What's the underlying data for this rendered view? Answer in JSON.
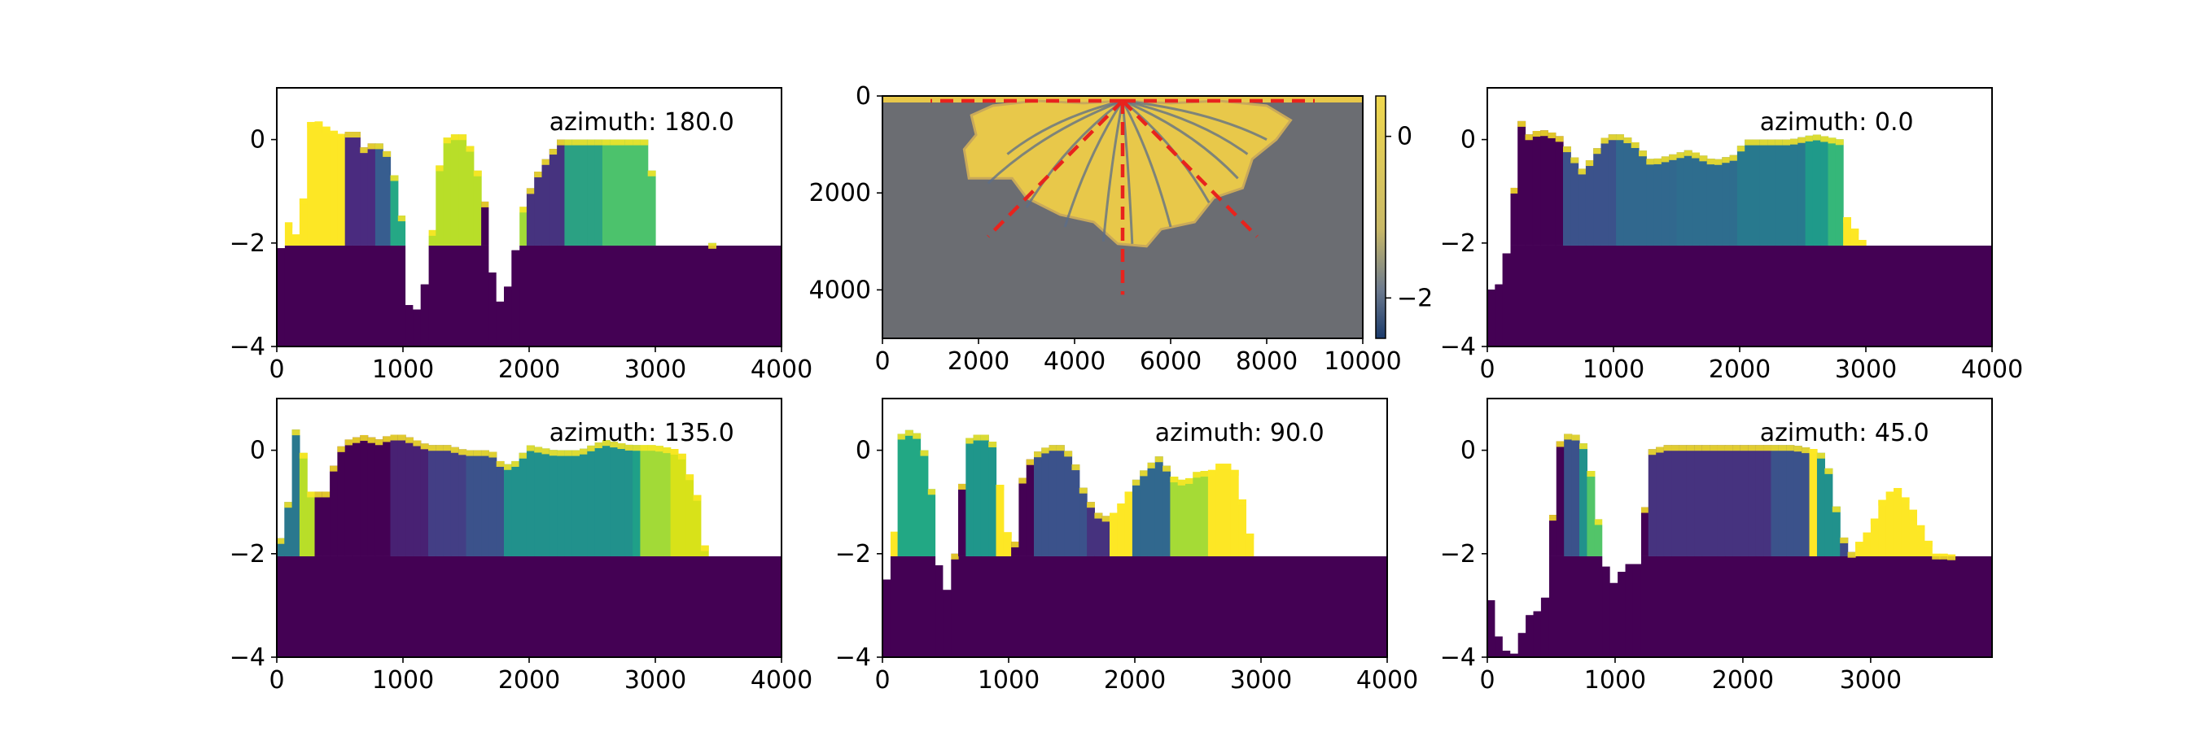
{
  "chart_data": [
    {
      "id": "sec-180",
      "type": "heatmap",
      "annotation": "azimuth: 180.0",
      "xlim": [
        0,
        4000
      ],
      "ylim": [
        -4,
        1
      ],
      "xticks": [
        {
          "v": 0,
          "label": "0"
        },
        {
          "v": 1000,
          "label": "1000"
        },
        {
          "v": 2000,
          "label": "2000"
        },
        {
          "v": 3000,
          "label": "3000"
        },
        {
          "v": 4000,
          "label": "4000"
        }
      ],
      "yticks": [
        {
          "v": 0,
          "label": "0"
        },
        {
          "v": -2,
          "label": "−2"
        },
        {
          "v": -4,
          "label": "−4"
        }
      ],
      "x_step": 60,
      "base_level": -2.05,
      "profile": [
        [
          0,
          -2
        ],
        [
          60,
          -2.2
        ],
        [
          100,
          -1.4
        ],
        [
          140,
          -1.9
        ],
        [
          200,
          -1.5
        ],
        [
          250,
          0.3
        ],
        [
          300,
          0.4
        ],
        [
          420,
          0.2
        ],
        [
          520,
          0.1
        ],
        [
          620,
          0.2
        ],
        [
          700,
          -0.2
        ],
        [
          780,
          0
        ],
        [
          900,
          -0.3
        ],
        [
          1000,
          -1.6
        ],
        [
          1050,
          -3.2
        ],
        [
          1120,
          -3.3
        ],
        [
          1200,
          -2.5
        ],
        [
          1260,
          -1.0
        ],
        [
          1320,
          0
        ],
        [
          1400,
          0.1
        ],
        [
          1500,
          0.1
        ],
        [
          1580,
          -0.5
        ],
        [
          1650,
          -1.2
        ],
        [
          1720,
          -2.8
        ],
        [
          1780,
          -3.2
        ],
        [
          1850,
          -2.7
        ],
        [
          1950,
          -1.3
        ],
        [
          2050,
          -0.7
        ],
        [
          2150,
          -0.3
        ],
        [
          2250,
          0
        ],
        [
          2350,
          0
        ],
        [
          2450,
          0
        ],
        [
          2550,
          0
        ],
        [
          2700,
          0
        ],
        [
          2850,
          0
        ],
        [
          2950,
          0
        ],
        [
          3000,
          -1.5
        ],
        [
          3020,
          -2.05
        ],
        [
          3400,
          -2.05
        ],
        [
          3450,
          -2.0
        ],
        [
          3500,
          -2.05
        ],
        [
          4000,
          -2.05
        ]
      ],
      "palette": [
        [
          0,
          "#fde725"
        ],
        [
          520,
          "#4a2b7f"
        ],
        [
          760,
          "#375d8f"
        ],
        [
          900,
          "#25a885"
        ],
        [
          1100,
          "#b8de29"
        ],
        [
          1640,
          "#440154"
        ],
        [
          1700,
          "#a2da37"
        ],
        [
          2000,
          "#46337f"
        ],
        [
          2300,
          "#2ba183"
        ],
        [
          2600,
          "#4cc26c"
        ],
        [
          3000,
          "#4cc26c"
        ]
      ]
    },
    {
      "id": "sec-0",
      "type": "heatmap",
      "annotation": "azimuth: 0.0",
      "xlim": [
        0,
        4000
      ],
      "ylim": [
        -4,
        1
      ],
      "xticks": [
        {
          "v": 0,
          "label": "0"
        },
        {
          "v": 1000,
          "label": "1000"
        },
        {
          "v": 2000,
          "label": "2000"
        },
        {
          "v": 3000,
          "label": "3000"
        },
        {
          "v": 4000,
          "label": "4000"
        }
      ],
      "yticks": [
        {
          "v": 0,
          "label": "0"
        },
        {
          "v": -2,
          "label": "−2"
        },
        {
          "v": -4,
          "label": "−4"
        }
      ],
      "x_step": 60,
      "base_level": -2.05,
      "profile": [
        [
          0,
          -2.9
        ],
        [
          80,
          -2.9
        ],
        [
          150,
          -2.2
        ],
        [
          200,
          -1.5
        ],
        [
          230,
          0.2
        ],
        [
          260,
          0.4
        ],
        [
          330,
          0.1
        ],
        [
          420,
          0.2
        ],
        [
          560,
          0.1
        ],
        [
          650,
          -0.2
        ],
        [
          760,
          -0.6
        ],
        [
          860,
          -0.2
        ],
        [
          950,
          0.1
        ],
        [
          1050,
          0.1
        ],
        [
          1150,
          0
        ],
        [
          1300,
          -0.4
        ],
        [
          1450,
          -0.3
        ],
        [
          1600,
          -0.2
        ],
        [
          1800,
          -0.4
        ],
        [
          1950,
          -0.3
        ],
        [
          2050,
          0
        ],
        [
          2200,
          0
        ],
        [
          2400,
          0
        ],
        [
          2600,
          0.1
        ],
        [
          2800,
          0
        ],
        [
          2850,
          -1.5
        ],
        [
          3000,
          -2.05
        ],
        [
          4000,
          -2.05
        ]
      ],
      "palette": [
        [
          0,
          "#fde725"
        ],
        [
          200,
          "#440154"
        ],
        [
          600,
          "#3b528b"
        ],
        [
          1000,
          "#31688e"
        ],
        [
          1500,
          "#2e6d8e"
        ],
        [
          2000,
          "#28798e"
        ],
        [
          2500,
          "#1f9a8a"
        ],
        [
          2700,
          "#35b779"
        ],
        [
          2800,
          "#fde725"
        ],
        [
          3000,
          "#fde725"
        ]
      ]
    },
    {
      "id": "sec-135",
      "type": "heatmap",
      "annotation": "azimuth: 135.0",
      "xlim": [
        0,
        4000
      ],
      "ylim": [
        -4,
        1
      ],
      "xticks": [
        {
          "v": 0,
          "label": "0"
        },
        {
          "v": 1000,
          "label": "1000"
        },
        {
          "v": 2000,
          "label": "2000"
        },
        {
          "v": 3000,
          "label": "3000"
        },
        {
          "v": 4000,
          "label": "4000"
        }
      ],
      "yticks": [
        {
          "v": 0,
          "label": "0"
        },
        {
          "v": -2,
          "label": "−2"
        },
        {
          "v": -4,
          "label": "−4"
        }
      ],
      "x_step": 60,
      "base_level": -2.05,
      "profile": [
        [
          0,
          -2.4
        ],
        [
          60,
          -1
        ],
        [
          120,
          -1
        ],
        [
          150,
          0.4
        ],
        [
          200,
          0.1
        ],
        [
          260,
          -0.8
        ],
        [
          330,
          -0.8
        ],
        [
          400,
          -0.8
        ],
        [
          480,
          0
        ],
        [
          560,
          0.2
        ],
        [
          700,
          0.3
        ],
        [
          800,
          0.2
        ],
        [
          900,
          0.3
        ],
        [
          1000,
          0.3
        ],
        [
          1100,
          0.2
        ],
        [
          1200,
          0.1
        ],
        [
          1350,
          0.1
        ],
        [
          1500,
          0
        ],
        [
          1700,
          0
        ],
        [
          1800,
          -0.3
        ],
        [
          1900,
          -0.2
        ],
        [
          2000,
          0.1
        ],
        [
          2200,
          0
        ],
        [
          2400,
          0
        ],
        [
          2600,
          0.2
        ],
        [
          2800,
          0.1
        ],
        [
          3000,
          0.1
        ],
        [
          3200,
          0
        ],
        [
          3350,
          -1
        ],
        [
          3400,
          -2.05
        ],
        [
          4000,
          -2.05
        ]
      ],
      "palette": [
        [
          0,
          "#2a788e"
        ],
        [
          200,
          "#b8de29"
        ],
        [
          300,
          "#440154"
        ],
        [
          900,
          "#482173"
        ],
        [
          1200,
          "#433e85"
        ],
        [
          1500,
          "#3b528b"
        ],
        [
          1800,
          "#21918c"
        ],
        [
          2800,
          "#1fa088"
        ],
        [
          2900,
          "#a2da37"
        ],
        [
          3100,
          "#d8e219"
        ],
        [
          3400,
          "#d8e219"
        ]
      ]
    },
    {
      "id": "sec-90",
      "type": "heatmap",
      "annotation": "azimuth: 90.0",
      "xlim": [
        0,
        4000
      ],
      "ylim": [
        -4,
        1
      ],
      "xticks": [
        {
          "v": 0,
          "label": "0"
        },
        {
          "v": 1000,
          "label": "1000"
        },
        {
          "v": 2000,
          "label": "2000"
        },
        {
          "v": 3000,
          "label": "3000"
        },
        {
          "v": 4000,
          "label": "4000"
        }
      ],
      "yticks": [
        {
          "v": 0,
          "label": "0"
        },
        {
          "v": -2,
          "label": "−2"
        },
        {
          "v": -4,
          "label": "−4"
        }
      ],
      "x_step": 60,
      "base_level": -2.05,
      "profile": [
        [
          0,
          -2.6
        ],
        [
          60,
          -2.4
        ],
        [
          100,
          -1.3
        ],
        [
          140,
          0.3
        ],
        [
          200,
          0.4
        ],
        [
          300,
          0.3
        ],
        [
          380,
          -0.5
        ],
        [
          440,
          -2
        ],
        [
          480,
          -2.9
        ],
        [
          540,
          -2.5
        ],
        [
          600,
          -1.5
        ],
        [
          660,
          0.2
        ],
        [
          740,
          0.3
        ],
        [
          860,
          0.3
        ],
        [
          920,
          -0.5
        ],
        [
          980,
          -1.5
        ],
        [
          1040,
          -2
        ],
        [
          1100,
          -0.6
        ],
        [
          1160,
          -0.2
        ],
        [
          1240,
          0
        ],
        [
          1340,
          0.1
        ],
        [
          1440,
          0.1
        ],
        [
          1520,
          -0.2
        ],
        [
          1600,
          -0.8
        ],
        [
          1700,
          -1.2
        ],
        [
          1800,
          -1.3
        ],
        [
          1900,
          -1.0
        ],
        [
          2000,
          -0.6
        ],
        [
          2100,
          -0.3
        ],
        [
          2200,
          -0.1
        ],
        [
          2300,
          -0.5
        ],
        [
          2400,
          -0.6
        ],
        [
          2500,
          -0.4
        ],
        [
          2600,
          -0.4
        ],
        [
          2700,
          -0.2
        ],
        [
          2800,
          -0.4
        ],
        [
          2900,
          -1.5
        ],
        [
          2950,
          -2.05
        ],
        [
          4000,
          -2.05
        ]
      ],
      "palette": [
        [
          0,
          "#fde725"
        ],
        [
          150,
          "#22a884"
        ],
        [
          400,
          "#fde725"
        ],
        [
          480,
          "#440154"
        ],
        [
          680,
          "#1f968b"
        ],
        [
          900,
          "#fde725"
        ],
        [
          1000,
          "#440154"
        ],
        [
          1200,
          "#3b528b"
        ],
        [
          1600,
          "#46327e"
        ],
        [
          1800,
          "#fde725"
        ],
        [
          2000,
          "#31688e"
        ],
        [
          2300,
          "#a5db36"
        ],
        [
          2600,
          "#fde725"
        ],
        [
          2950,
          "#fde725"
        ]
      ]
    },
    {
      "id": "sec-45",
      "type": "heatmap",
      "annotation": "azimuth: 45.0",
      "xlim": [
        0,
        3950
      ],
      "ylim": [
        -4,
        1
      ],
      "xticks": [
        {
          "v": 0,
          "label": "0"
        },
        {
          "v": 1000,
          "label": "1000"
        },
        {
          "v": 2000,
          "label": "2000"
        },
        {
          "v": 3000,
          "label": "3000"
        }
      ],
      "yticks": [
        {
          "v": 0,
          "label": "0"
        },
        {
          "v": -2,
          "label": "−2"
        },
        {
          "v": -4,
          "label": "−4"
        }
      ],
      "x_step": 60,
      "base_level": -2.05,
      "profile": [
        [
          0,
          -2.4
        ],
        [
          60,
          -3.4
        ],
        [
          120,
          -3.8
        ],
        [
          200,
          -4
        ],
        [
          260,
          -3.6
        ],
        [
          320,
          -3.2
        ],
        [
          400,
          -3.1
        ],
        [
          460,
          -2.8
        ],
        [
          500,
          -1.5
        ],
        [
          540,
          -0.5
        ],
        [
          580,
          0.4
        ],
        [
          640,
          0.3
        ],
        [
          700,
          0.3
        ],
        [
          760,
          0.1
        ],
        [
          820,
          -0.5
        ],
        [
          880,
          -1.5
        ],
        [
          940,
          -2.4
        ],
        [
          1000,
          -2.6
        ],
        [
          1060,
          -2.3
        ],
        [
          1100,
          -2.2
        ],
        [
          1200,
          -2.2
        ],
        [
          1260,
          0
        ],
        [
          1400,
          0.1
        ],
        [
          1600,
          0.1
        ],
        [
          1800,
          0.1
        ],
        [
          2000,
          0.1
        ],
        [
          2200,
          0.1
        ],
        [
          2400,
          0.1
        ],
        [
          2600,
          0
        ],
        [
          2680,
          -0.4
        ],
        [
          2760,
          -1.5
        ],
        [
          2840,
          -2
        ],
        [
          2900,
          -1.8
        ],
        [
          3000,
          -1.5
        ],
        [
          3100,
          -0.9
        ],
        [
          3200,
          -0.7
        ],
        [
          3300,
          -1
        ],
        [
          3400,
          -1.5
        ],
        [
          3500,
          -2
        ],
        [
          3600,
          -2
        ],
        [
          3700,
          -2.05
        ],
        [
          3950,
          -2.05
        ]
      ],
      "palette": [
        [
          0,
          "#440154"
        ],
        [
          600,
          "#3b528b"
        ],
        [
          700,
          "#21918c"
        ],
        [
          800,
          "#52c569"
        ],
        [
          940,
          "#440154"
        ],
        [
          1260,
          "#46337f"
        ],
        [
          2200,
          "#3b528b"
        ],
        [
          2500,
          "#fde725"
        ],
        [
          2580,
          "#21918c"
        ],
        [
          2750,
          "#3e4a89"
        ],
        [
          2900,
          "#fde725"
        ],
        [
          3950,
          "#fde725"
        ]
      ]
    },
    {
      "id": "map",
      "type": "heatmap",
      "annotation": "",
      "xlim": [
        0,
        10000
      ],
      "ylim": [
        5000,
        0
      ],
      "xticks": [
        {
          "v": 0,
          "label": "0"
        },
        {
          "v": 2000,
          "label": "2000"
        },
        {
          "v": 4000,
          "label": "4000"
        },
        {
          "v": 6000,
          "label": "6000"
        },
        {
          "v": 8000,
          "label": "8000"
        },
        {
          "v": 10000,
          "label": "10000"
        }
      ],
      "yticks": [
        {
          "v": 0,
          "label": "0"
        },
        {
          "v": 2000,
          "label": "2000"
        },
        {
          "v": 4000,
          "label": "4000"
        }
      ],
      "apex": [
        5000,
        100
      ],
      "section_lines": [
        {
          "from": [
            5000,
            100
          ],
          "to": [
            1000,
            100
          ]
        },
        {
          "from": [
            5000,
            100
          ],
          "to": [
            9000,
            100
          ]
        },
        {
          "from": [
            5000,
            100
          ],
          "to": [
            2200,
            2900
          ]
        },
        {
          "from": [
            5000,
            100
          ],
          "to": [
            7800,
            2900
          ]
        },
        {
          "from": [
            5000,
            100
          ],
          "to": [
            5000,
            4100
          ]
        }
      ],
      "colorbar": {
        "ticks": [
          {
            "v": 0,
            "label": "0"
          },
          {
            "v": -2,
            "label": "−2"
          }
        ],
        "range": [
          -2.5,
          0.5
        ]
      },
      "colors": {
        "background": "#6b6d72",
        "deposit": "#e8c84a",
        "channel": "#5b6d8a",
        "line": "#e8231d"
      }
    }
  ]
}
